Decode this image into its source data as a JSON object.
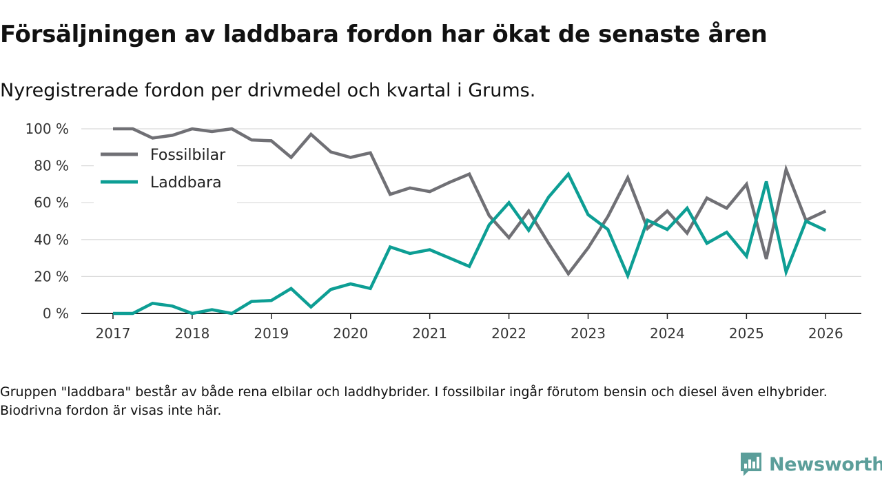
{
  "title": "Försäljningen av laddbara fordon har ökat de senaste åren",
  "subtitle": "Nyregistrerade fordon per drivmedel och kvartal i Grums.",
  "note": "Gruppen \"laddbara\" består av både rena elbilar och laddhybrider. I fossilbilar ingår förutom bensin och diesel även elhybrider. Biodrivna fordon är visas inte här.",
  "brand": {
    "name": "Newsworthy",
    "icon": "newsworthy-logo-icon",
    "color": "#5b9e9a"
  },
  "chart_data": {
    "type": "line",
    "title": "Försäljningen av laddbara fordon har ökat de senaste åren",
    "xlabel": "",
    "ylabel": "",
    "x": [
      2017,
      2017.25,
      2017.5,
      2017.75,
      2018,
      2018.25,
      2018.5,
      2018.75,
      2019,
      2019.25,
      2019.5,
      2019.75,
      2020,
      2020.25,
      2020.5,
      2020.75,
      2021,
      2021.25,
      2021.5,
      2021.75,
      2022,
      2022.25,
      2022.5,
      2022.75,
      2023,
      2023.25,
      2023.5,
      2023.75,
      2024,
      2024.25,
      2024.5,
      2024.75,
      2025,
      2025.25,
      2025.5,
      2025.75,
      2026
    ],
    "xlim": [
      2016.6,
      2026.45
    ],
    "ylim": [
      0,
      100
    ],
    "yticks": [
      0,
      20,
      40,
      60,
      80,
      100
    ],
    "ytick_labels": [
      "0 %",
      "20 %",
      "40 %",
      "60 %",
      "80 %",
      "100 %"
    ],
    "xticks": [
      2017,
      2018,
      2019,
      2020,
      2021,
      2022,
      2023,
      2024,
      2025,
      2026
    ],
    "xtick_labels": [
      "2017",
      "2018",
      "2019",
      "2020",
      "2021",
      "2022",
      "2023",
      "2024",
      "2025",
      "2026"
    ],
    "grid": true,
    "legend_position": "top-left",
    "series": [
      {
        "name": "Fossilbilar",
        "color": "#707075",
        "values": [
          100,
          100,
          95,
          96.5,
          100,
          98.5,
          100,
          94,
          93.5,
          84.5,
          97,
          87.5,
          84.5,
          87,
          64.5,
          68,
          66,
          71,
          75.5,
          53,
          41,
          55.5,
          38,
          21.5,
          35.5,
          52.5,
          73.5,
          46,
          55.5,
          43.5,
          62.5,
          57,
          70,
          29.5,
          78,
          50.5,
          55.5
        ]
      },
      {
        "name": "Laddbara",
        "color": "#0d9e94",
        "values": [
          0,
          0,
          5.5,
          4,
          0,
          2,
          0,
          6.5,
          7,
          13.5,
          3.5,
          13,
          16,
          13.5,
          36,
          32.5,
          34.5,
          30,
          25.5,
          48,
          60,
          45,
          63,
          75.5,
          53.5,
          45.5,
          20.5,
          50.5,
          45.5,
          57,
          38,
          44,
          31,
          71.5,
          22.5,
          50,
          45
        ]
      }
    ]
  }
}
